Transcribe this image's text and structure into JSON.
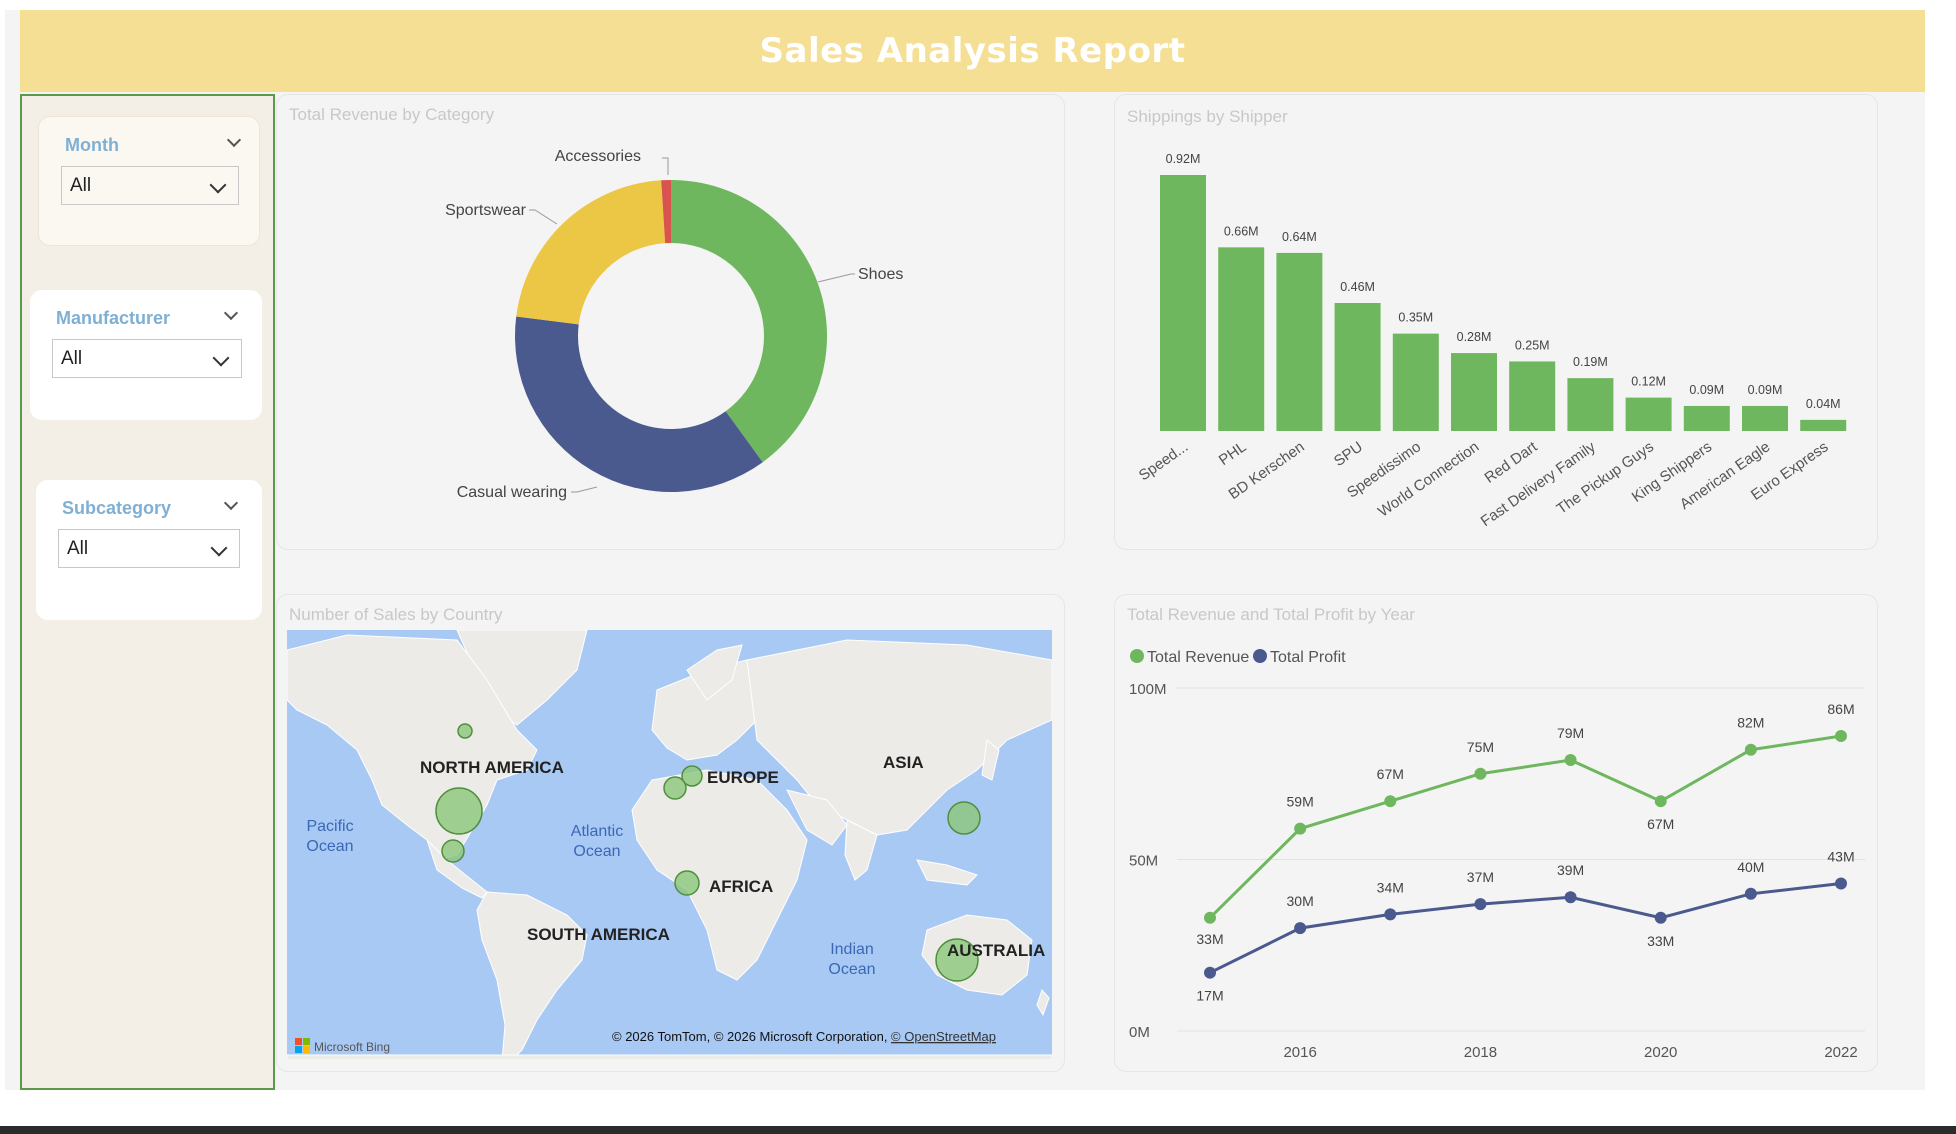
{
  "report": {
    "title": "Sales Analysis Report"
  },
  "slicers": [
    {
      "title": "Month",
      "value": "All"
    },
    {
      "title": "Manufacturer",
      "value": "All"
    },
    {
      "title": "Subcategory",
      "value": "All"
    }
  ],
  "donut": {
    "title": "Total Revenue by Category",
    "chart_data": {
      "type": "pie",
      "categories": [
        "Shoes",
        "Casual wearing",
        "Sportswear",
        "Accessories"
      ],
      "values": [
        40,
        37,
        22,
        1
      ],
      "colors": [
        "#6fb75f",
        "#4b5a8e",
        "#ecc645",
        "#d9534f"
      ]
    }
  },
  "shippers": {
    "title": "Shippings by Shipper",
    "chart_data": {
      "type": "bar",
      "categories": [
        "Speed...",
        "PHL",
        "BD Kerschen",
        "SPU",
        "Speedissimo",
        "World Connection",
        "Red Dart",
        "Fast Delivery Family",
        "The Pickup Guys",
        "King Shippers",
        "American Eagle",
        "Euro Express"
      ],
      "values": [
        0.92,
        0.66,
        0.64,
        0.46,
        0.35,
        0.28,
        0.25,
        0.19,
        0.12,
        0.09,
        0.09,
        0.04
      ],
      "labels": [
        "0.92M",
        "0.66M",
        "0.64M",
        "0.46M",
        "0.35M",
        "0.28M",
        "0.25M",
        "0.19M",
        "0.12M",
        "0.09M",
        "0.09M",
        "0.04M"
      ],
      "color": "#6fb75f"
    }
  },
  "map": {
    "title": "Number of Sales by Country",
    "continents": [
      "NORTH AMERICA",
      "EUROPE",
      "ASIA",
      "AFRICA",
      "SOUTH AMERICA",
      "AUSTRALIA"
    ],
    "oceans": [
      [
        "Pacific",
        "Ocean"
      ],
      [
        "Atlantic",
        "Ocean"
      ],
      [
        "Indian",
        "Ocean"
      ]
    ],
    "attribution": "© 2026 TomTom, © 2026 Microsoft Corporation, ",
    "attribution_link": "© OpenStreetMap",
    "brand": "Microsoft Bing"
  },
  "line": {
    "title": "Total Revenue and Total Profit by Year",
    "chart_data": {
      "type": "line",
      "x": [
        2015,
        2016,
        2017,
        2018,
        2019,
        2020,
        2021,
        2022
      ],
      "series": [
        {
          "name": "Total Revenue",
          "color": "#6fb75f",
          "values": [
            33,
            59,
            67,
            75,
            79,
            67,
            82,
            86
          ],
          "labels": [
            "33M",
            "59M",
            "67M",
            "75M",
            "79M",
            "67M",
            "82M",
            "86M"
          ]
        },
        {
          "name": "Total Profit",
          "color": "#4b5a8e",
          "values": [
            17,
            30,
            34,
            37,
            39,
            33,
            40,
            43
          ],
          "labels": [
            "17M",
            "30M",
            "34M",
            "37M",
            "39M",
            "33M",
            "40M",
            "43M"
          ]
        }
      ],
      "xticks": [
        "2016",
        "2018",
        "2020",
        "2022"
      ],
      "yticks": [
        "0M",
        "50M",
        "100M"
      ],
      "ylim": [
        0,
        100
      ]
    }
  }
}
